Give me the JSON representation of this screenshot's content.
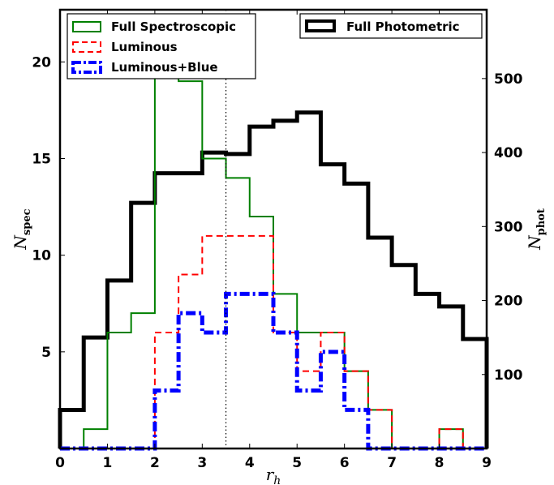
{
  "chart_data": {
    "type": "line",
    "title": "",
    "xlabel": "r",
    "xlabel_sub": "h",
    "ylabel": "N",
    "ylabel_sub": "spec",
    "y2label": "N",
    "y2label_sub": "phot",
    "xlim": [
      0,
      9
    ],
    "ylim": [
      0,
      22.7
    ],
    "y2lim": [
      0,
      593
    ],
    "xticks": [
      "0",
      "1",
      "2",
      "3",
      "4",
      "5",
      "6",
      "7",
      "8",
      "9"
    ],
    "yticks": [
      "5",
      "10",
      "15",
      "20"
    ],
    "y2ticks": [
      "100",
      "200",
      "300",
      "400",
      "500"
    ],
    "bin_edges": [
      0,
      0.5,
      1,
      1.5,
      2,
      2.5,
      3,
      3.5,
      4,
      4.5,
      5,
      5.5,
      6,
      6.5,
      7,
      7.5,
      8,
      8.5,
      9
    ],
    "vline_x": 3.5,
    "grid": false,
    "series": [
      {
        "name": "Full Spectroscopic",
        "axis": "left",
        "color": "#008000",
        "style": "solid",
        "values": [
          0,
          1,
          6,
          7,
          22,
          19,
          15,
          14,
          12,
          8,
          6,
          6,
          4,
          2,
          0,
          0,
          1,
          0
        ]
      },
      {
        "name": "Luminous",
        "axis": "left",
        "color": "#ff0000",
        "style": "dashed",
        "values": [
          0,
          0,
          0,
          0,
          6,
          9,
          11,
          11,
          11,
          6,
          4,
          6,
          4,
          2,
          0,
          0,
          1,
          0
        ]
      },
      {
        "name": "Luminous+Blue",
        "axis": "left",
        "color": "#0000ff",
        "style": "dashdot",
        "values": [
          0,
          0,
          0,
          0,
          3,
          7,
          6,
          8,
          8,
          6,
          3,
          5,
          2,
          0,
          0,
          0,
          0,
          0
        ]
      },
      {
        "name": "Full Photometric",
        "axis": "right",
        "color": "#000000",
        "style": "solid",
        "values": [
          52,
          150,
          227,
          332,
          372,
          372,
          400,
          398,
          435,
          443,
          454,
          384,
          358,
          285,
          248,
          209,
          192,
          148
        ]
      }
    ],
    "legend_left_position": "top-left",
    "legend_right_position": "top-right"
  }
}
